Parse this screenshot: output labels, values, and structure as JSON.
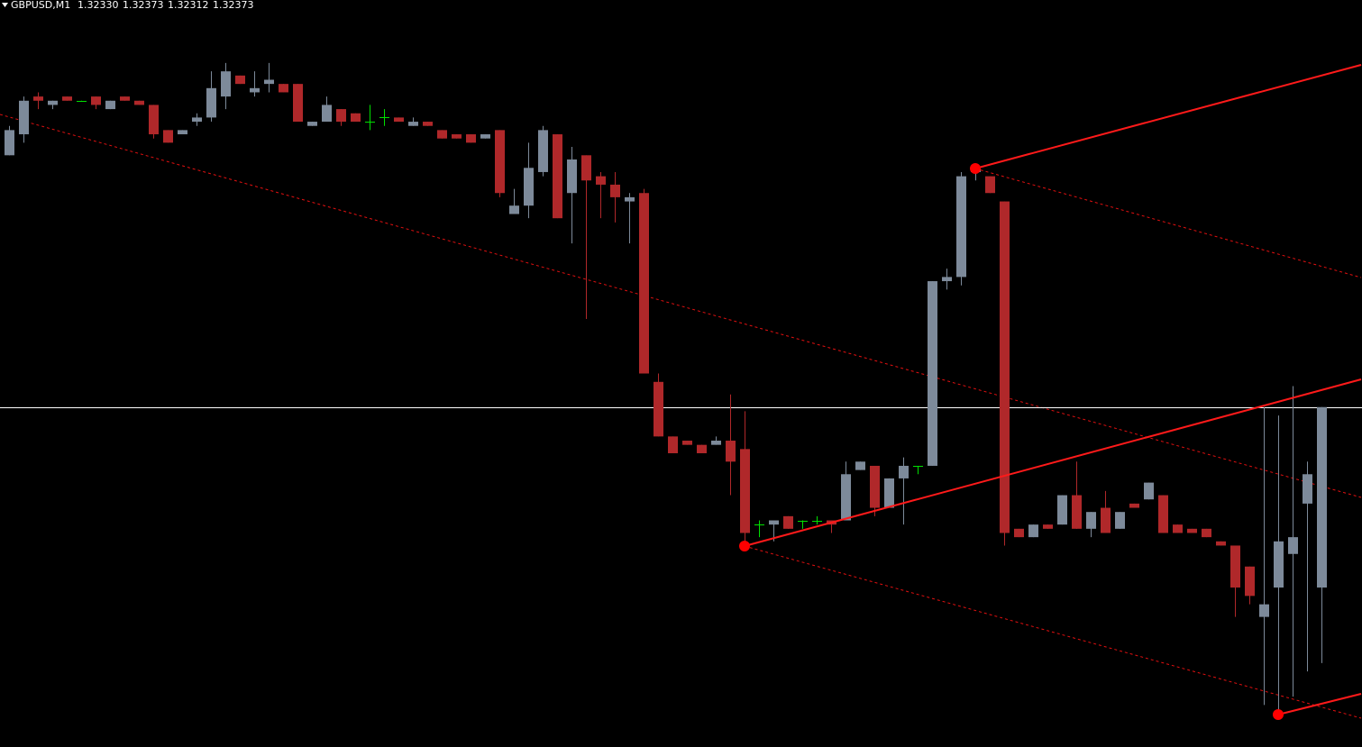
{
  "chart_data": {
    "type": "candlestick",
    "title": "GBPUSD,M1",
    "title_values": [
      "1.32330",
      "1.32373",
      "1.32312",
      "1.32373"
    ],
    "ylim": [
      1.32292,
      1.3247
    ],
    "up_color": "#7d8a9a",
    "down_color": "#b0282a",
    "doji_color": "#00e000",
    "bid_line_color": "#ffffff",
    "ohlc": [
      [
        1.32433,
        1.3244,
        1.32433,
        1.32439
      ],
      [
        1.32438,
        1.32447,
        1.32436,
        1.32446
      ],
      [
        1.32447,
        1.32448,
        1.32444,
        1.32446
      ],
      [
        1.32445,
        1.32446,
        1.32444,
        1.32446
      ],
      [
        1.32447,
        1.32447,
        1.32446,
        1.32446
      ],
      [
        1.32446,
        1.32446,
        1.32446,
        1.32446
      ],
      [
        1.32447,
        1.32447,
        1.32444,
        1.32445
      ],
      [
        1.32444,
        1.32446,
        1.32444,
        1.32446
      ],
      [
        1.32447,
        1.32447,
        1.32446,
        1.32446
      ],
      [
        1.32446,
        1.32446,
        1.32445,
        1.32445
      ],
      [
        1.32445,
        1.32445,
        1.32437,
        1.32438
      ],
      [
        1.32439,
        1.32439,
        1.32436,
        1.32436
      ],
      [
        1.32438,
        1.32439,
        1.32438,
        1.32439
      ],
      [
        1.32441,
        1.32443,
        1.3244,
        1.32442
      ],
      [
        1.32442,
        1.32453,
        1.32441,
        1.32449
      ],
      [
        1.32447,
        1.32455,
        1.32444,
        1.32453
      ],
      [
        1.32452,
        1.32452,
        1.3245,
        1.3245
      ],
      [
        1.32448,
        1.32453,
        1.32447,
        1.32449
      ],
      [
        1.3245,
        1.32455,
        1.32448,
        1.32451
      ],
      [
        1.3245,
        1.3245,
        1.32448,
        1.32448
      ],
      [
        1.3245,
        1.3245,
        1.32441,
        1.32441
      ],
      [
        1.3244,
        1.32441,
        1.3244,
        1.32441
      ],
      [
        1.32441,
        1.32447,
        1.32441,
        1.32445
      ],
      [
        1.32444,
        1.32444,
        1.3244,
        1.32441
      ],
      [
        1.32443,
        1.32443,
        1.32441,
        1.32441
      ],
      [
        1.32441,
        1.32445,
        1.32439,
        1.32441
      ],
      [
        1.32442,
        1.32444,
        1.3244,
        1.32442
      ],
      [
        1.32442,
        1.32442,
        1.32441,
        1.32441
      ],
      [
        1.3244,
        1.32442,
        1.3244,
        1.32441
      ],
      [
        1.32441,
        1.32441,
        1.3244,
        1.3244
      ],
      [
        1.32439,
        1.32439,
        1.32437,
        1.32437
      ],
      [
        1.32438,
        1.32438,
        1.32437,
        1.32437
      ],
      [
        1.32438,
        1.32438,
        1.32436,
        1.32436
      ],
      [
        1.32437,
        1.32438,
        1.32437,
        1.32438
      ],
      [
        1.32439,
        1.32439,
        1.32423,
        1.32424
      ],
      [
        1.32419,
        1.32425,
        1.32419,
        1.32421
      ],
      [
        1.32421,
        1.32436,
        1.32418,
        1.3243
      ],
      [
        1.32429,
        1.3244,
        1.32428,
        1.32439
      ],
      [
        1.32438,
        1.32438,
        1.32418,
        1.32418
      ],
      [
        1.32424,
        1.32435,
        1.32412,
        1.32432
      ],
      [
        1.32433,
        1.32433,
        1.32394,
        1.32427
      ],
      [
        1.32428,
        1.32429,
        1.32418,
        1.32426
      ],
      [
        1.32426,
        1.32429,
        1.32417,
        1.32423
      ],
      [
        1.32422,
        1.32424,
        1.32412,
        1.32423
      ],
      [
        1.32424,
        1.32425,
        1.32381,
        1.32381
      ],
      [
        1.32379,
        1.32381,
        1.32366,
        1.32366
      ],
      [
        1.32366,
        1.32366,
        1.32362,
        1.32362
      ],
      [
        1.32365,
        1.32365,
        1.32364,
        1.32364
      ],
      [
        1.32364,
        1.32364,
        1.32362,
        1.32362
      ],
      [
        1.32364,
        1.32366,
        1.32364,
        1.32365
      ],
      [
        1.32365,
        1.32376,
        1.32352,
        1.3236
      ],
      [
        1.32363,
        1.32372,
        1.3234,
        1.32343
      ],
      [
        1.32345,
        1.32346,
        1.32342,
        1.32345
      ],
      [
        1.32345,
        1.32346,
        1.32341,
        1.32346
      ],
      [
        1.32347,
        1.32347,
        1.32344,
        1.32344
      ],
      [
        1.32346,
        1.32346,
        1.32344,
        1.32346
      ],
      [
        1.32346,
        1.32347,
        1.32345,
        1.32346
      ],
      [
        1.32346,
        1.32346,
        1.32343,
        1.32345
      ],
      [
        1.32346,
        1.3236,
        1.32346,
        1.32357
      ],
      [
        1.32358,
        1.3236,
        1.32358,
        1.3236
      ],
      [
        1.32359,
        1.32359,
        1.32347,
        1.32349
      ],
      [
        1.32349,
        1.32356,
        1.32349,
        1.32356
      ],
      [
        1.32356,
        1.32361,
        1.32345,
        1.32359
      ],
      [
        1.32359,
        1.32359,
        1.32357,
        1.32359
      ],
      [
        1.32359,
        1.32403,
        1.32359,
        1.32403
      ],
      [
        1.32403,
        1.32406,
        1.32401,
        1.32404
      ],
      [
        1.32404,
        1.32429,
        1.32402,
        1.32428
      ],
      [
        1.32429,
        1.32431,
        1.32427,
        1.3243
      ],
      [
        1.32428,
        1.32428,
        1.32424,
        1.32424
      ],
      [
        1.32422,
        1.32422,
        1.3234,
        1.32343
      ],
      [
        1.32344,
        1.32344,
        1.32342,
        1.32342
      ],
      [
        1.32342,
        1.32345,
        1.32342,
        1.32345
      ],
      [
        1.32345,
        1.32345,
        1.32344,
        1.32344
      ],
      [
        1.32345,
        1.32352,
        1.32345,
        1.32352
      ],
      [
        1.32352,
        1.3236,
        1.32344,
        1.32344
      ],
      [
        1.32344,
        1.32348,
        1.32342,
        1.32348
      ],
      [
        1.32349,
        1.32353,
        1.32343,
        1.32343
      ],
      [
        1.32344,
        1.32348,
        1.32344,
        1.32348
      ],
      [
        1.3235,
        1.3235,
        1.32349,
        1.32349
      ],
      [
        1.32351,
        1.32355,
        1.32351,
        1.32355
      ],
      [
        1.32352,
        1.32352,
        1.32343,
        1.32343
      ],
      [
        1.32345,
        1.32345,
        1.32343,
        1.32343
      ],
      [
        1.32344,
        1.32344,
        1.32343,
        1.32343
      ],
      [
        1.32344,
        1.32344,
        1.32342,
        1.32342
      ],
      [
        1.32341,
        1.32341,
        1.3234,
        1.3234
      ],
      [
        1.3234,
        1.3234,
        1.32323,
        1.3233
      ],
      [
        1.32335,
        1.32335,
        1.32326,
        1.32328
      ],
      [
        1.32323,
        1.32373,
        1.32302,
        1.32326
      ],
      [
        1.3233,
        1.32371,
        1.323,
        1.32341
      ],
      [
        1.32338,
        1.32378,
        1.32304,
        1.32342
      ],
      [
        1.3235,
        1.3236,
        1.3231,
        1.32357
      ],
      [
        1.3233,
        1.32373,
        1.32312,
        1.32373
      ]
    ]
  }
}
